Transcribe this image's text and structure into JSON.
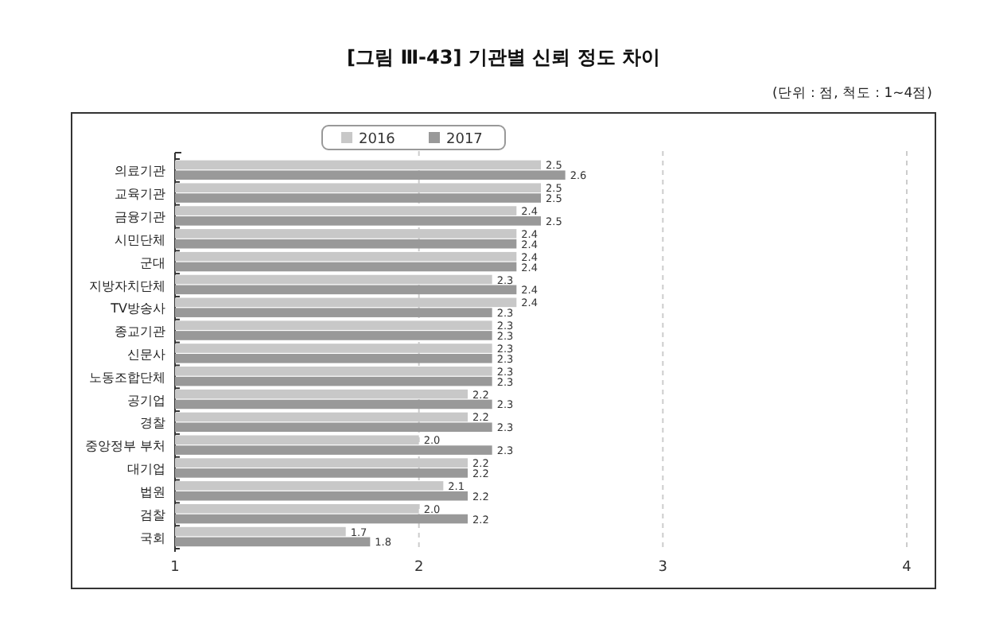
{
  "chart_data": {
    "type": "bar",
    "orientation": "horizontal",
    "title": "[그림 Ⅲ-43] 기관별 신뢰 정도 차이",
    "annotations": [
      "(단위 : 점, 척도 : 1~4점)"
    ],
    "categories": [
      "의료기관",
      "교육기관",
      "금융기관",
      "시민단체",
      "군대",
      "지방자치단체",
      "TV방송사",
      "종교기관",
      "신문사",
      "노동조합단체",
      "공기업",
      "경찰",
      "중앙정부 부처",
      "대기업",
      "법원",
      "검찰",
      "국회"
    ],
    "series": [
      {
        "name": "2016",
        "color": "#c8c8c8",
        "values": [
          2.5,
          2.5,
          2.4,
          2.4,
          2.4,
          2.3,
          2.4,
          2.3,
          2.3,
          2.3,
          2.2,
          2.2,
          2.0,
          2.2,
          2.1,
          2.0,
          1.7
        ],
        "value_labels": [
          "2.5",
          "2.5",
          "2.4",
          "2.4",
          "2.4",
          "2.3",
          "2.4",
          "2.3",
          "2.3",
          "2.3",
          "2.2",
          "2.2",
          "2.0",
          "2.2",
          "2.1",
          "2.0",
          "1.7"
        ]
      },
      {
        "name": "2017",
        "color": "#999999",
        "values": [
          2.6,
          2.5,
          2.5,
          2.4,
          2.4,
          2.4,
          2.3,
          2.3,
          2.3,
          2.3,
          2.3,
          2.3,
          2.3,
          2.2,
          2.2,
          2.2,
          1.8
        ],
        "value_labels": [
          "2.6",
          "2.5",
          "2.5",
          "2.4",
          "2.4",
          "2.4",
          "2.3",
          "2.3",
          "2.3",
          "2.3",
          "2.3",
          "2.3",
          "2.3",
          "2.2",
          "2.2",
          "2.2",
          "1.8"
        ]
      }
    ],
    "xlim": [
      1,
      4
    ],
    "xticks": [
      1,
      2,
      3,
      4
    ],
    "grid": "x",
    "legend": "top"
  }
}
